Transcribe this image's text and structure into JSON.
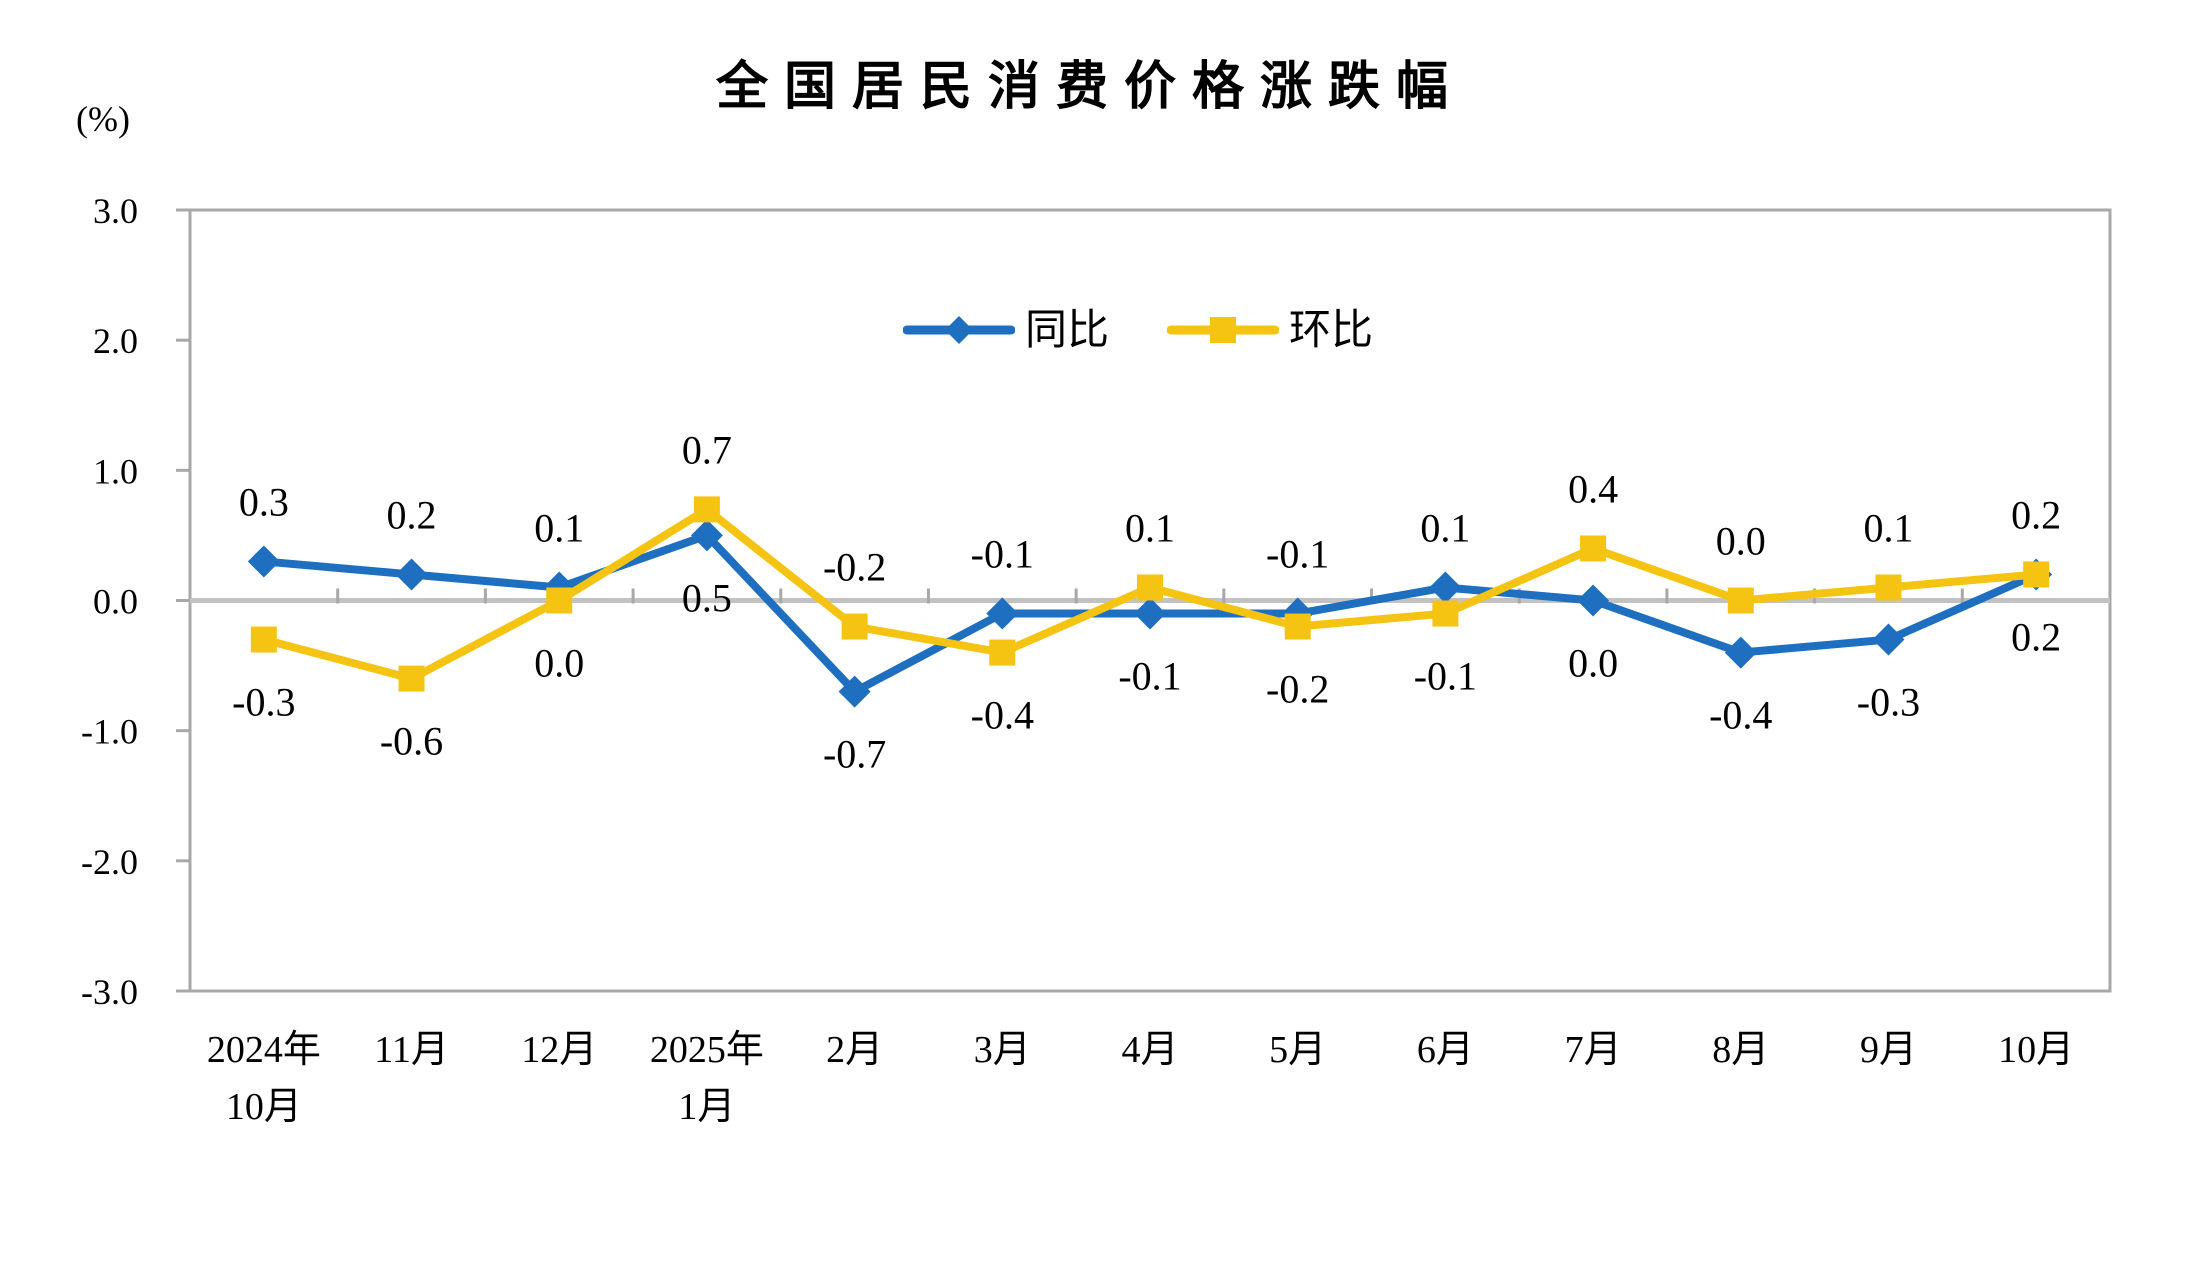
{
  "chart_data": {
    "type": "line",
    "title": "全国居民消费价格涨跌幅",
    "unit_label": "(%)",
    "ylim": [
      -3.0,
      3.0
    ],
    "y_ticks": [
      3.0,
      2.0,
      1.0,
      0.0,
      -1.0,
      -2.0,
      -3.0
    ],
    "grid": false,
    "legend_position": "top-center-inside",
    "categories": [
      [
        "2024年",
        "10月"
      ],
      [
        "11月"
      ],
      [
        "12月"
      ],
      [
        "2025年",
        "1月"
      ],
      [
        "2月"
      ],
      [
        "3月"
      ],
      [
        "4月"
      ],
      [
        "5月"
      ],
      [
        "6月"
      ],
      [
        "7月"
      ],
      [
        "8月"
      ],
      [
        "9月"
      ],
      [
        "10月"
      ]
    ],
    "series": [
      {
        "name": "同比",
        "marker": "diamond",
        "color": "#1E6FC0",
        "values": [
          0.3,
          0.2,
          0.1,
          0.5,
          -0.7,
          -0.1,
          -0.1,
          -0.1,
          0.1,
          0.0,
          -0.4,
          -0.3,
          0.2
        ]
      },
      {
        "name": "环比",
        "marker": "square",
        "color": "#F5C413",
        "values": [
          -0.3,
          -0.6,
          0.0,
          0.7,
          -0.2,
          -0.4,
          0.1,
          -0.2,
          -0.1,
          0.4,
          0.0,
          0.1,
          0.2
        ]
      }
    ],
    "frame_color": "#A8A8A8",
    "zero_line_color": "#C2C2C2",
    "text_color": "#000000"
  }
}
